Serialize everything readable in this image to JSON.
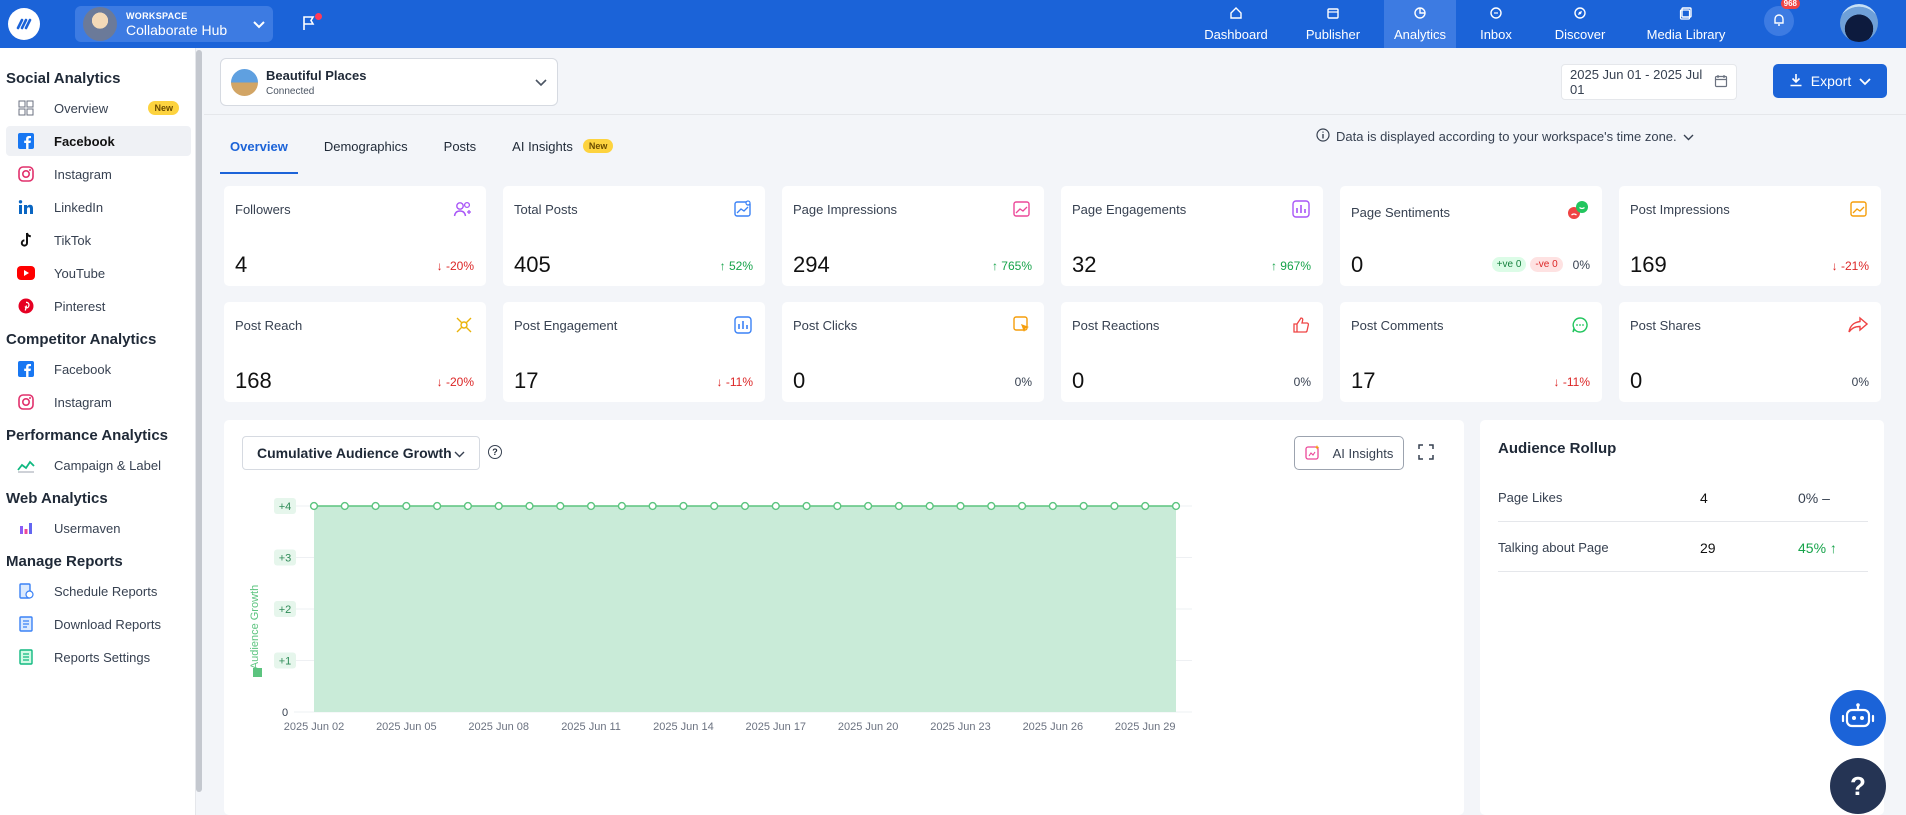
{
  "topbar": {
    "workspace_caption": "WORKSPACE",
    "workspace_name": "Collaborate Hub",
    "nav": [
      {
        "label": "Dashboard",
        "icon": "home-icon",
        "active": false
      },
      {
        "label": "Publisher",
        "icon": "calendar-icon",
        "active": false
      },
      {
        "label": "Analytics",
        "icon": "pie-chart-icon",
        "active": true
      },
      {
        "label": "Inbox",
        "icon": "chat-icon",
        "active": false
      },
      {
        "label": "Discover",
        "icon": "compass-icon",
        "active": false
      },
      {
        "label": "Media Library",
        "icon": "images-icon",
        "active": false
      }
    ],
    "notifications_badge": "968"
  },
  "sidebar": {
    "sections": [
      {
        "title": "Social Analytics",
        "items": [
          {
            "label": "Overview",
            "icon": "grid-icon",
            "badge": "New"
          },
          {
            "label": "Facebook",
            "icon": "facebook-icon",
            "active": true
          },
          {
            "label": "Instagram",
            "icon": "instagram-icon"
          },
          {
            "label": "LinkedIn",
            "icon": "linkedin-icon"
          },
          {
            "label": "TikTok",
            "icon": "tiktok-icon"
          },
          {
            "label": "YouTube",
            "icon": "youtube-icon"
          },
          {
            "label": "Pinterest",
            "icon": "pinterest-icon"
          }
        ]
      },
      {
        "title": "Competitor Analytics",
        "items": [
          {
            "label": "Facebook",
            "icon": "facebook-icon"
          },
          {
            "label": "Instagram",
            "icon": "instagram-icon"
          }
        ]
      },
      {
        "title": "Performance Analytics",
        "items": [
          {
            "label": "Campaign & Label",
            "icon": "campaign-icon"
          }
        ]
      },
      {
        "title": "Web Analytics",
        "items": [
          {
            "label": "Usermaven",
            "icon": "usermaven-icon"
          }
        ]
      },
      {
        "title": "Manage Reports",
        "items": [
          {
            "label": "Schedule Reports",
            "icon": "schedule-report-icon"
          },
          {
            "label": "Download Reports",
            "icon": "download-report-icon"
          },
          {
            "label": "Reports Settings",
            "icon": "report-settings-icon"
          }
        ]
      }
    ]
  },
  "account": {
    "name": "Beautiful Places",
    "status": "Connected"
  },
  "date_range": "2025 Jun 01 - 2025 Jul 01",
  "export_label": "Export",
  "tabs": [
    {
      "label": "Overview",
      "active": true
    },
    {
      "label": "Demographics"
    },
    {
      "label": "Posts"
    },
    {
      "label": "AI Insights",
      "badge": "New"
    }
  ],
  "timezone_note": "Data is displayed according to your workspace's time zone.",
  "cards": [
    {
      "title": "Followers",
      "value": "4",
      "change": "-20%",
      "dir": "down",
      "icon": "followers-icon",
      "color": "#a855f7"
    },
    {
      "title": "Total Posts",
      "value": "405",
      "change": "52%",
      "dir": "up",
      "icon": "posts-icon",
      "color": "#3b82f6"
    },
    {
      "title": "Page Impressions",
      "value": "294",
      "change": "765%",
      "dir": "up",
      "icon": "impressions-icon",
      "color": "#ec4899"
    },
    {
      "title": "Page Engagements",
      "value": "32",
      "change": "967%",
      "dir": "up",
      "icon": "engagement-icon",
      "color": "#a855f7"
    },
    {
      "title": "Page Sentiments",
      "value": "0",
      "change": "0%",
      "dir": "sent",
      "pos": "+ve 0",
      "neg": "-ve 0",
      "icon": "sentiment-icon",
      "color": "#22c55e"
    },
    {
      "title": "Post Impressions",
      "value": "169",
      "change": "-21%",
      "dir": "down",
      "icon": "post-impressions-icon",
      "color": "#f59e0b"
    },
    {
      "title": "Post Reach",
      "value": "168",
      "change": "-20%",
      "dir": "down",
      "icon": "reach-icon",
      "color": "#eab308"
    },
    {
      "title": "Post Engagement",
      "value": "17",
      "change": "-11%",
      "dir": "down",
      "icon": "post-engagement-icon",
      "color": "#3b82f6"
    },
    {
      "title": "Post Clicks",
      "value": "0",
      "change": "0%",
      "dir": "flat",
      "icon": "click-icon",
      "color": "#f59e0b"
    },
    {
      "title": "Post Reactions",
      "value": "0",
      "change": "0%",
      "dir": "flat",
      "icon": "like-icon",
      "color": "#ef4444"
    },
    {
      "title": "Post Comments",
      "value": "17",
      "change": "-11%",
      "dir": "down",
      "icon": "comment-icon",
      "color": "#22c55e"
    },
    {
      "title": "Post Shares",
      "value": "0",
      "change": "0%",
      "dir": "flat",
      "icon": "share-icon",
      "color": "#ef4444"
    }
  ],
  "chart": {
    "selector_label": "Cumulative Audience Growth",
    "ai_insights_label": "AI Insights"
  },
  "chart_data": {
    "type": "area",
    "ylabel": "Audience Growth",
    "yticks": [
      "0",
      "+1",
      "+2",
      "+3",
      "+4"
    ],
    "ylim": [
      0,
      4
    ],
    "x_tick_labels": [
      "2025 Jun 02",
      "2025 Jun 05",
      "2025 Jun 08",
      "2025 Jun 11",
      "2025 Jun 14",
      "2025 Jun 17",
      "2025 Jun 20",
      "2025 Jun 23",
      "2025 Jun 26",
      "2025 Jun 29"
    ],
    "x": [
      "2025 Jun 02",
      "2025 Jun 03",
      "2025 Jun 04",
      "2025 Jun 05",
      "2025 Jun 06",
      "2025 Jun 07",
      "2025 Jun 08",
      "2025 Jun 09",
      "2025 Jun 10",
      "2025 Jun 11",
      "2025 Jun 12",
      "2025 Jun 13",
      "2025 Jun 14",
      "2025 Jun 15",
      "2025 Jun 16",
      "2025 Jun 17",
      "2025 Jun 18",
      "2025 Jun 19",
      "2025 Jun 20",
      "2025 Jun 21",
      "2025 Jun 22",
      "2025 Jun 23",
      "2025 Jun 24",
      "2025 Jun 25",
      "2025 Jun 26",
      "2025 Jun 27",
      "2025 Jun 28",
      "2025 Jun 29",
      "2025 Jun 30"
    ],
    "values": [
      4,
      4,
      4,
      4,
      4,
      4,
      4,
      4,
      4,
      4,
      4,
      4,
      4,
      4,
      4,
      4,
      4,
      4,
      4,
      4,
      4,
      4,
      4,
      4,
      4,
      4,
      4,
      4,
      4
    ],
    "line_color": "#5cc47f",
    "fill_color": "#c9ebd8"
  },
  "rollup": {
    "title": "Audience Rollup",
    "rows": [
      {
        "label": "Page Likes",
        "value": "4",
        "pct": "0% –",
        "dir": "flat"
      },
      {
        "label": "Talking about Page",
        "value": "29",
        "pct": "45% ↑",
        "dir": "up"
      }
    ]
  }
}
